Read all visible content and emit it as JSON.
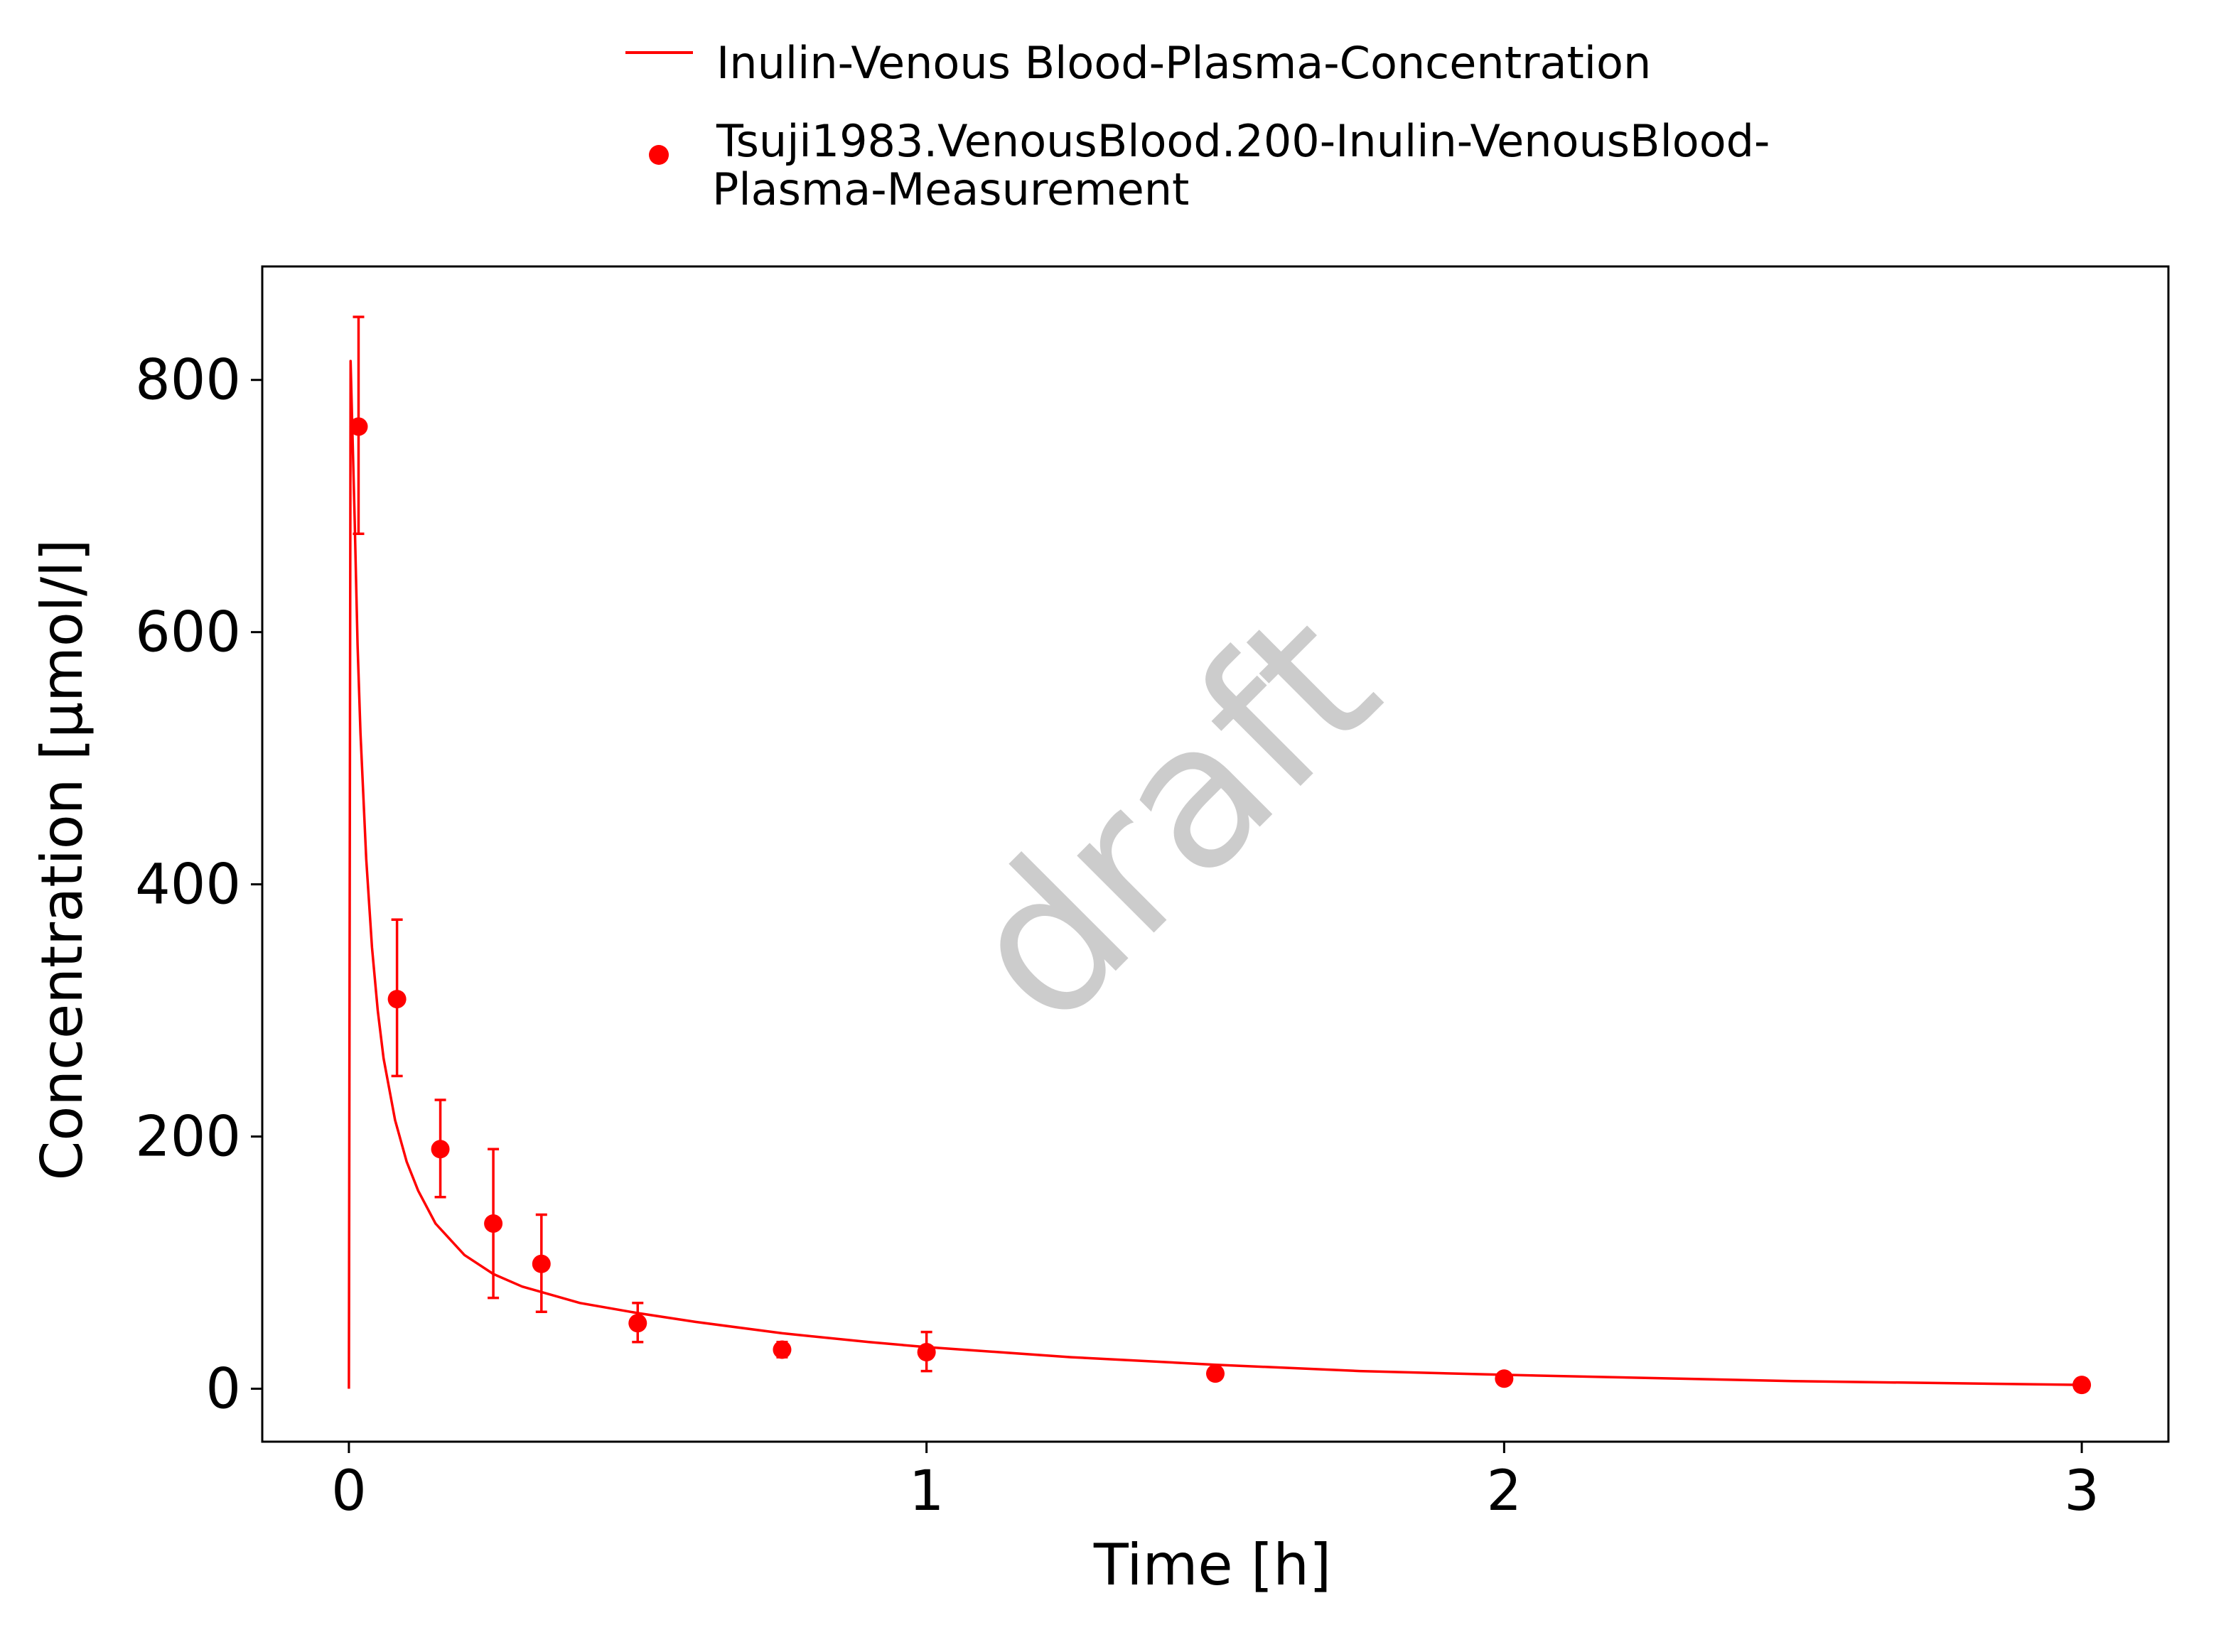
{
  "chart_data": {
    "type": "line",
    "title": "",
    "xlabel": "Time [h]",
    "ylabel": "Concentration [µmol/l]",
    "xlim": [
      -0.15,
      3.15
    ],
    "ylim": [
      -42,
      890
    ],
    "x_ticks": [
      "0",
      "1",
      "2",
      "3"
    ],
    "y_ticks": [
      "0",
      "200",
      "400",
      "600",
      "800"
    ],
    "grid": false,
    "legend_position": "top",
    "watermark": "draft",
    "colors": {
      "series": "#ff0000",
      "axis": "#000000",
      "watermark": "#cccccc"
    },
    "series": [
      {
        "name": "Inulin-Venous Blood-Plasma-Concentration",
        "type": "line",
        "x": [
          0,
          0.003,
          0.006,
          0.01,
          0.015,
          0.02,
          0.03,
          0.04,
          0.05,
          0.06,
          0.08,
          0.1,
          0.12,
          0.15,
          0.2,
          0.25,
          0.3,
          0.4,
          0.5,
          0.6,
          0.75,
          0.9,
          1.0,
          1.25,
          1.5,
          1.75,
          2.0,
          2.5,
          3.0
        ],
        "y": [
          0,
          815,
          760,
          690,
          590,
          520,
          420,
          350,
          300,
          262,
          213,
          180,
          157,
          131,
          106,
          91,
          81,
          68,
          60,
          53,
          44,
          37,
          33,
          25,
          19,
          14,
          11,
          6,
          3
        ]
      },
      {
        "name": "Tsuji1983.VenousBlood.200-Inulin-VenousBlood-Plasma-Measurement",
        "legend_lines": [
          "Tsuji1983.VenousBlood.200-Inulin-VenousBlood-",
          "Plasma-Measurement"
        ],
        "type": "scatter",
        "points": [
          {
            "x": 0.0167,
            "y": 763,
            "y_low": 678,
            "y_high": 850
          },
          {
            "x": 0.0833,
            "y": 309,
            "y_low": 248,
            "y_high": 372
          },
          {
            "x": 0.1583,
            "y": 190,
            "y_low": 152,
            "y_high": 229
          },
          {
            "x": 0.25,
            "y": 131,
            "y_low": 72,
            "y_high": 190
          },
          {
            "x": 0.3333,
            "y": 99,
            "y_low": 61,
            "y_high": 138
          },
          {
            "x": 0.5,
            "y": 52,
            "y_low": 37,
            "y_high": 68
          },
          {
            "x": 0.75,
            "y": 31,
            "y_low": 25,
            "y_high": 37
          },
          {
            "x": 1.0,
            "y": 29,
            "y_low": 14,
            "y_high": 45
          },
          {
            "x": 1.5,
            "y": 12,
            "y_low": 12,
            "y_high": 12
          },
          {
            "x": 2.0,
            "y": 8,
            "y_low": 8,
            "y_high": 8
          },
          {
            "x": 3.0,
            "y": 3,
            "y_low": 3,
            "y_high": 3
          }
        ]
      }
    ]
  }
}
